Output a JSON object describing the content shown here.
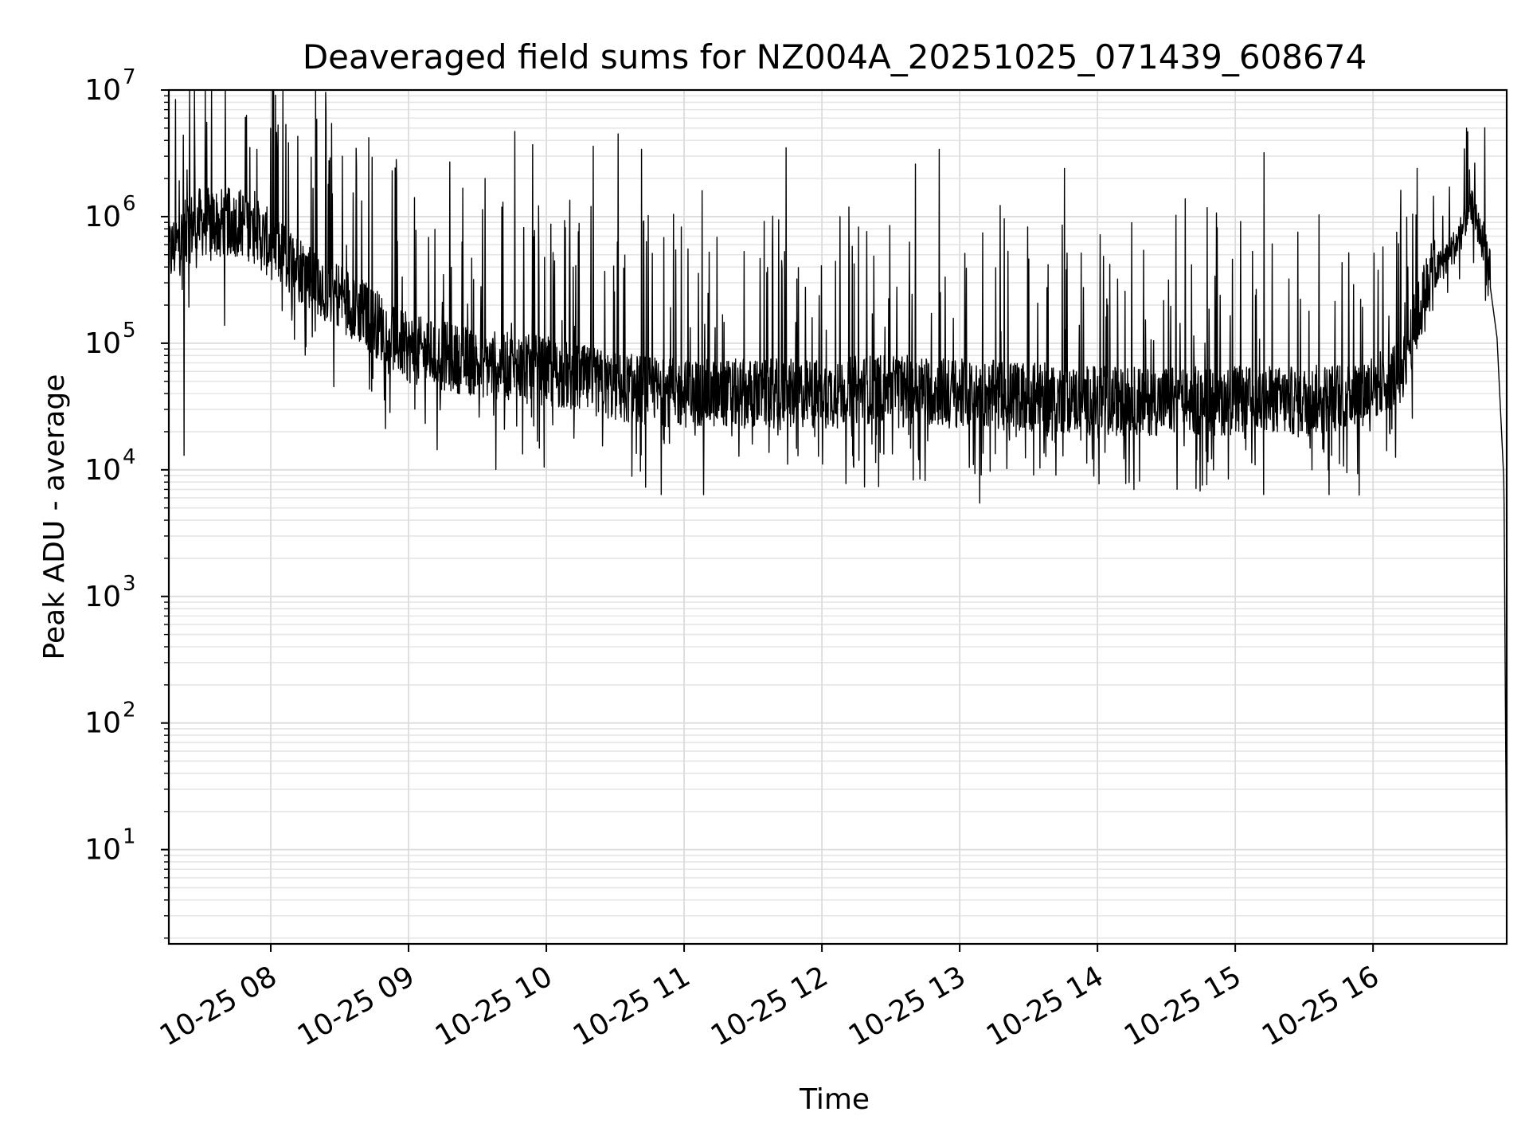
{
  "chart_data": {
    "type": "line",
    "title": "Deaveraged field sums for NZ004A_20251025_071439_608674",
    "xlabel": "Time",
    "ylabel": "Peak ADU - average",
    "yscale": "log",
    "ylim": [
      1.8,
      10000000
    ],
    "xlim_hours": [
      7.26,
      16.97
    ],
    "grid": true,
    "x_ticks": [
      {
        "label": "10-25 08",
        "hour": 8
      },
      {
        "label": "10-25 09",
        "hour": 9
      },
      {
        "label": "10-25 10",
        "hour": 10
      },
      {
        "label": "10-25 11",
        "hour": 11
      },
      {
        "label": "10-25 12",
        "hour": 12
      },
      {
        "label": "10-25 13",
        "hour": 13
      },
      {
        "label": "10-25 14",
        "hour": 14
      },
      {
        "label": "10-25 15",
        "hour": 15
      },
      {
        "label": "10-25 16",
        "hour": 16
      }
    ],
    "y_ticks": [
      {
        "base": "10",
        "exp": "1",
        "value": 10
      },
      {
        "base": "10",
        "exp": "2",
        "value": 100
      },
      {
        "base": "10",
        "exp": "3",
        "value": 1000
      },
      {
        "base": "10",
        "exp": "4",
        "value": 10000
      },
      {
        "base": "10",
        "exp": "5",
        "value": 100000
      },
      {
        "base": "10",
        "exp": "6",
        "value": 1000000
      },
      {
        "base": "10",
        "exp": "7",
        "value": 10000000
      }
    ],
    "series": [
      {
        "name": "Peak ADU - average",
        "color": "#000000",
        "baseline_hours": [
          7.26,
          7.45,
          7.8,
          8.2,
          8.6,
          9.0,
          9.5,
          10.0,
          10.5,
          11.0,
          11.5,
          12.0,
          12.5,
          13.0,
          13.5,
          14.0,
          14.5,
          15.0,
          15.5,
          15.9,
          16.2,
          16.4,
          16.6,
          16.72,
          16.82,
          16.9,
          16.95,
          16.97
        ],
        "baseline_values": [
          500000,
          900000,
          900000,
          400000,
          200000,
          90000,
          70000,
          60000,
          45000,
          40000,
          40000,
          40000,
          45000,
          40000,
          38000,
          35000,
          35000,
          35000,
          35000,
          40000,
          60000,
          300000,
          600000,
          1200000,
          500000,
          110000,
          8000,
          4
        ],
        "spikes": [
          {
            "hour": 7.37,
            "value": 13000
          },
          {
            "hour": 7.45,
            "value": 2900000
          },
          {
            "hour": 7.9,
            "value": 3400000
          },
          {
            "hour": 8.05,
            "value": 3100000
          },
          {
            "hour": 8.52,
            "value": 3000000
          },
          {
            "hour": 8.88,
            "value": 2300000
          },
          {
            "hour": 9.3,
            "value": 2700000
          },
          {
            "hour": 9.77,
            "value": 4700000
          },
          {
            "hour": 9.9,
            "value": 3700000
          },
          {
            "hour": 10.34,
            "value": 3600000
          },
          {
            "hour": 10.52,
            "value": 4500000
          },
          {
            "hour": 10.69,
            "value": 3400000
          },
          {
            "hour": 11.13,
            "value": 1600000
          },
          {
            "hour": 11.74,
            "value": 3500000
          },
          {
            "hour": 12.13,
            "value": 1000000
          },
          {
            "hour": 12.68,
            "value": 2600000
          },
          {
            "hour": 12.85,
            "value": 3400000
          },
          {
            "hour": 13.1,
            "value": 11000
          },
          {
            "hour": 13.76,
            "value": 2400000
          },
          {
            "hour": 14.72,
            "value": 12000
          },
          {
            "hour": 15.21,
            "value": 3200000
          },
          {
            "hour": 15.7,
            "value": 13000
          },
          {
            "hour": 16.32,
            "value": 2400000
          },
          {
            "hour": 16.68,
            "value": 5000000
          }
        ]
      }
    ]
  }
}
